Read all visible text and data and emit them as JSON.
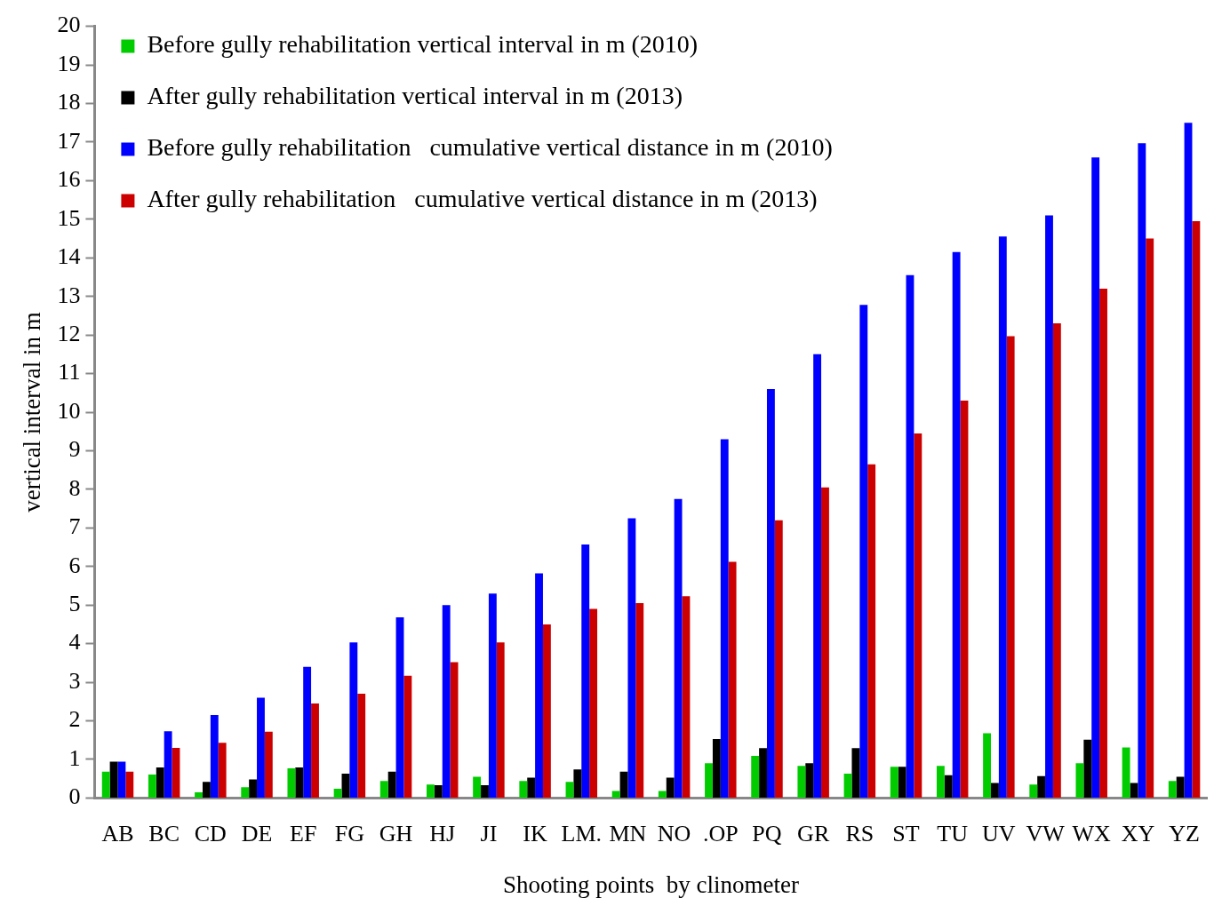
{
  "chart_data": {
    "type": "bar",
    "xlabel": "Shooting points  by clinometer",
    "ylabel": "vertical interval in m",
    "categories": [
      "AB",
      "BC",
      "CD",
      "DE",
      "EF",
      "FG",
      "GH",
      "HJ",
      "JI",
      "IK",
      "LM.",
      "MN",
      "NO",
      ".OP",
      "PQ",
      "GR",
      "RS",
      "ST",
      "TU",
      "UV",
      "VW",
      "WX",
      "XY",
      "YZ"
    ],
    "series": [
      {
        "name": "Before gully rehabilitation vertical interval in m (2010)",
        "color": "#00cc00",
        "values": [
          0.68,
          0.61,
          0.15,
          0.28,
          0.77,
          0.24,
          0.44,
          0.35,
          0.55,
          0.44,
          0.42,
          0.18,
          0.18,
          0.9,
          1.09,
          0.83,
          0.63,
          0.81,
          0.83,
          1.68,
          0.35,
          0.9,
          1.31,
          0.44
        ]
      },
      {
        "name": "After gully rehabilitation vertical interval in m (2013)",
        "color": "#000000",
        "values": [
          0.94,
          0.79,
          0.42,
          0.48,
          0.79,
          0.63,
          0.68,
          0.33,
          0.33,
          0.53,
          0.74,
          0.68,
          0.53,
          1.53,
          1.29,
          0.9,
          1.29,
          0.81,
          0.59,
          0.39,
          0.57,
          1.51,
          0.39,
          0.55
        ]
      },
      {
        "name": "Before gully rehabilitation   cumulative vertical distance in m (2010)",
        "color": "#0000ff",
        "values": [
          0.94,
          1.73,
          2.15,
          2.6,
          3.4,
          4.03,
          4.68,
          5.0,
          5.3,
          5.82,
          6.57,
          7.25,
          7.75,
          9.3,
          10.6,
          11.5,
          12.78,
          13.55,
          14.15,
          14.55,
          15.1,
          16.6,
          16.97,
          17.5
        ]
      },
      {
        "name": "After gully rehabilitation   cumulative vertical distance in m (2013)",
        "color": "#cc0000",
        "values": [
          0.68,
          1.3,
          1.43,
          1.72,
          2.45,
          2.7,
          3.17,
          3.52,
          4.03,
          4.5,
          4.9,
          5.05,
          5.23,
          6.12,
          7.2,
          8.05,
          8.65,
          9.45,
          10.3,
          11.97,
          12.3,
          13.2,
          14.5,
          14.95
        ]
      }
    ],
    "ylim": [
      0,
      20
    ],
    "yticks": [
      0,
      1,
      2,
      3,
      4,
      5,
      6,
      7,
      8,
      9,
      10,
      11,
      12,
      13,
      14,
      15,
      16,
      17,
      18,
      19,
      20
    ],
    "grid": false,
    "legend": "top left"
  }
}
